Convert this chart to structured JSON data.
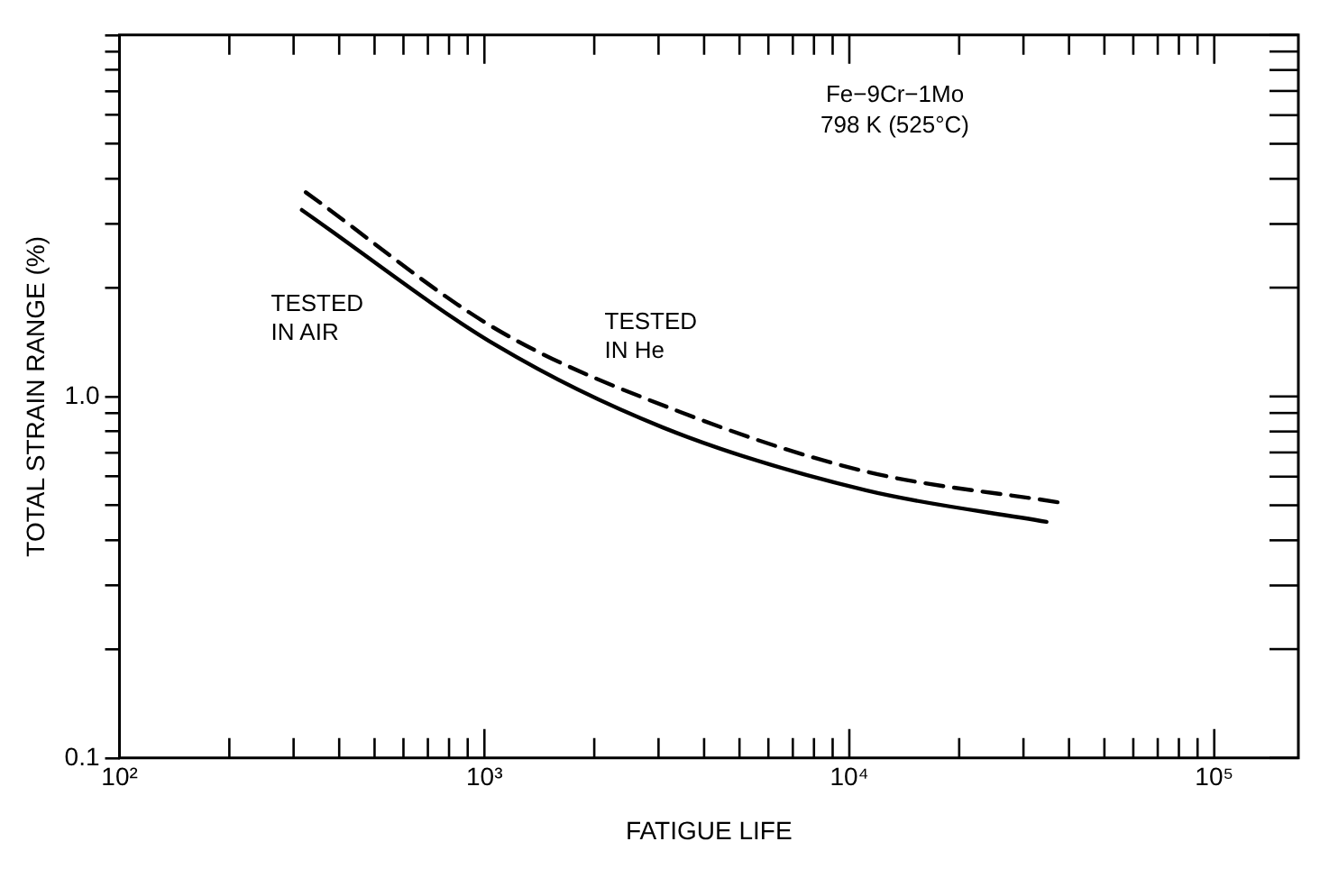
{
  "chart_data": {
    "type": "line",
    "xlabel": "FATIGUE LIFE",
    "ylabel": "TOTAL STRAIN RANGE (%)",
    "log": "xy",
    "grid": false,
    "legend": false,
    "marker": "none",
    "xlim": [
      100,
      170000
    ],
    "ylim": [
      0.1,
      10
    ],
    "xticks": [
      {
        "value": 100,
        "label": "10²"
      },
      {
        "value": 200,
        "label": null
      },
      {
        "value": 300,
        "label": null
      },
      {
        "value": 400,
        "label": null
      },
      {
        "value": 500,
        "label": null
      },
      {
        "value": 600,
        "label": null
      },
      {
        "value": 700,
        "label": null
      },
      {
        "value": 800,
        "label": null
      },
      {
        "value": 900,
        "label": null
      },
      {
        "value": 1000,
        "label": "10³"
      },
      {
        "value": 2000,
        "label": null
      },
      {
        "value": 3000,
        "label": null
      },
      {
        "value": 4000,
        "label": null
      },
      {
        "value": 5000,
        "label": null
      },
      {
        "value": 6000,
        "label": null
      },
      {
        "value": 7000,
        "label": null
      },
      {
        "value": 8000,
        "label": null
      },
      {
        "value": 9000,
        "label": null
      },
      {
        "value": 10000,
        "label": "10⁴"
      },
      {
        "value": 20000,
        "label": null
      },
      {
        "value": 30000,
        "label": null
      },
      {
        "value": 40000,
        "label": null
      },
      {
        "value": 50000,
        "label": null
      },
      {
        "value": 60000,
        "label": null
      },
      {
        "value": 70000,
        "label": null
      },
      {
        "value": 80000,
        "label": null
      },
      {
        "value": 90000,
        "label": null
      },
      {
        "value": 100000,
        "label": "10⁵"
      }
    ],
    "yticks": [
      {
        "value": 0.1,
        "label": "0.1"
      },
      {
        "value": 0.2,
        "label": null
      },
      {
        "value": 0.3,
        "label": null
      },
      {
        "value": 0.4,
        "label": null
      },
      {
        "value": 0.5,
        "label": null
      },
      {
        "value": 0.6,
        "label": null
      },
      {
        "value": 0.7,
        "label": null
      },
      {
        "value": 0.8,
        "label": null
      },
      {
        "value": 0.9,
        "label": null
      },
      {
        "value": 1,
        "label": "1.0"
      },
      {
        "value": 2,
        "label": null
      },
      {
        "value": 3,
        "label": null
      },
      {
        "value": 4,
        "label": null
      },
      {
        "value": 5,
        "label": null
      },
      {
        "value": 6,
        "label": null
      },
      {
        "value": 7,
        "label": null
      },
      {
        "value": 8,
        "label": null
      },
      {
        "value": 9,
        "label": null
      },
      {
        "value": 10,
        "label": null
      }
    ],
    "series": [
      {
        "name": "TESTED IN AIR",
        "color": "#000000",
        "line_style": "solid",
        "x": [
          316,
          1084,
          3090,
          11100,
          34700
        ],
        "values": [
          3.28,
          1.38,
          0.82,
          0.55,
          0.45
        ]
      },
      {
        "name": "TESTED IN He",
        "color": "#000000",
        "line_style": "dashed",
        "x": [
          324,
          1084,
          3400,
          11100,
          37200
        ],
        "values": [
          3.67,
          1.53,
          0.91,
          0.62,
          0.51
        ]
      }
    ],
    "annotations": [
      "Fe−9Cr−1Mo",
      "798 K (525°C)"
    ]
  }
}
